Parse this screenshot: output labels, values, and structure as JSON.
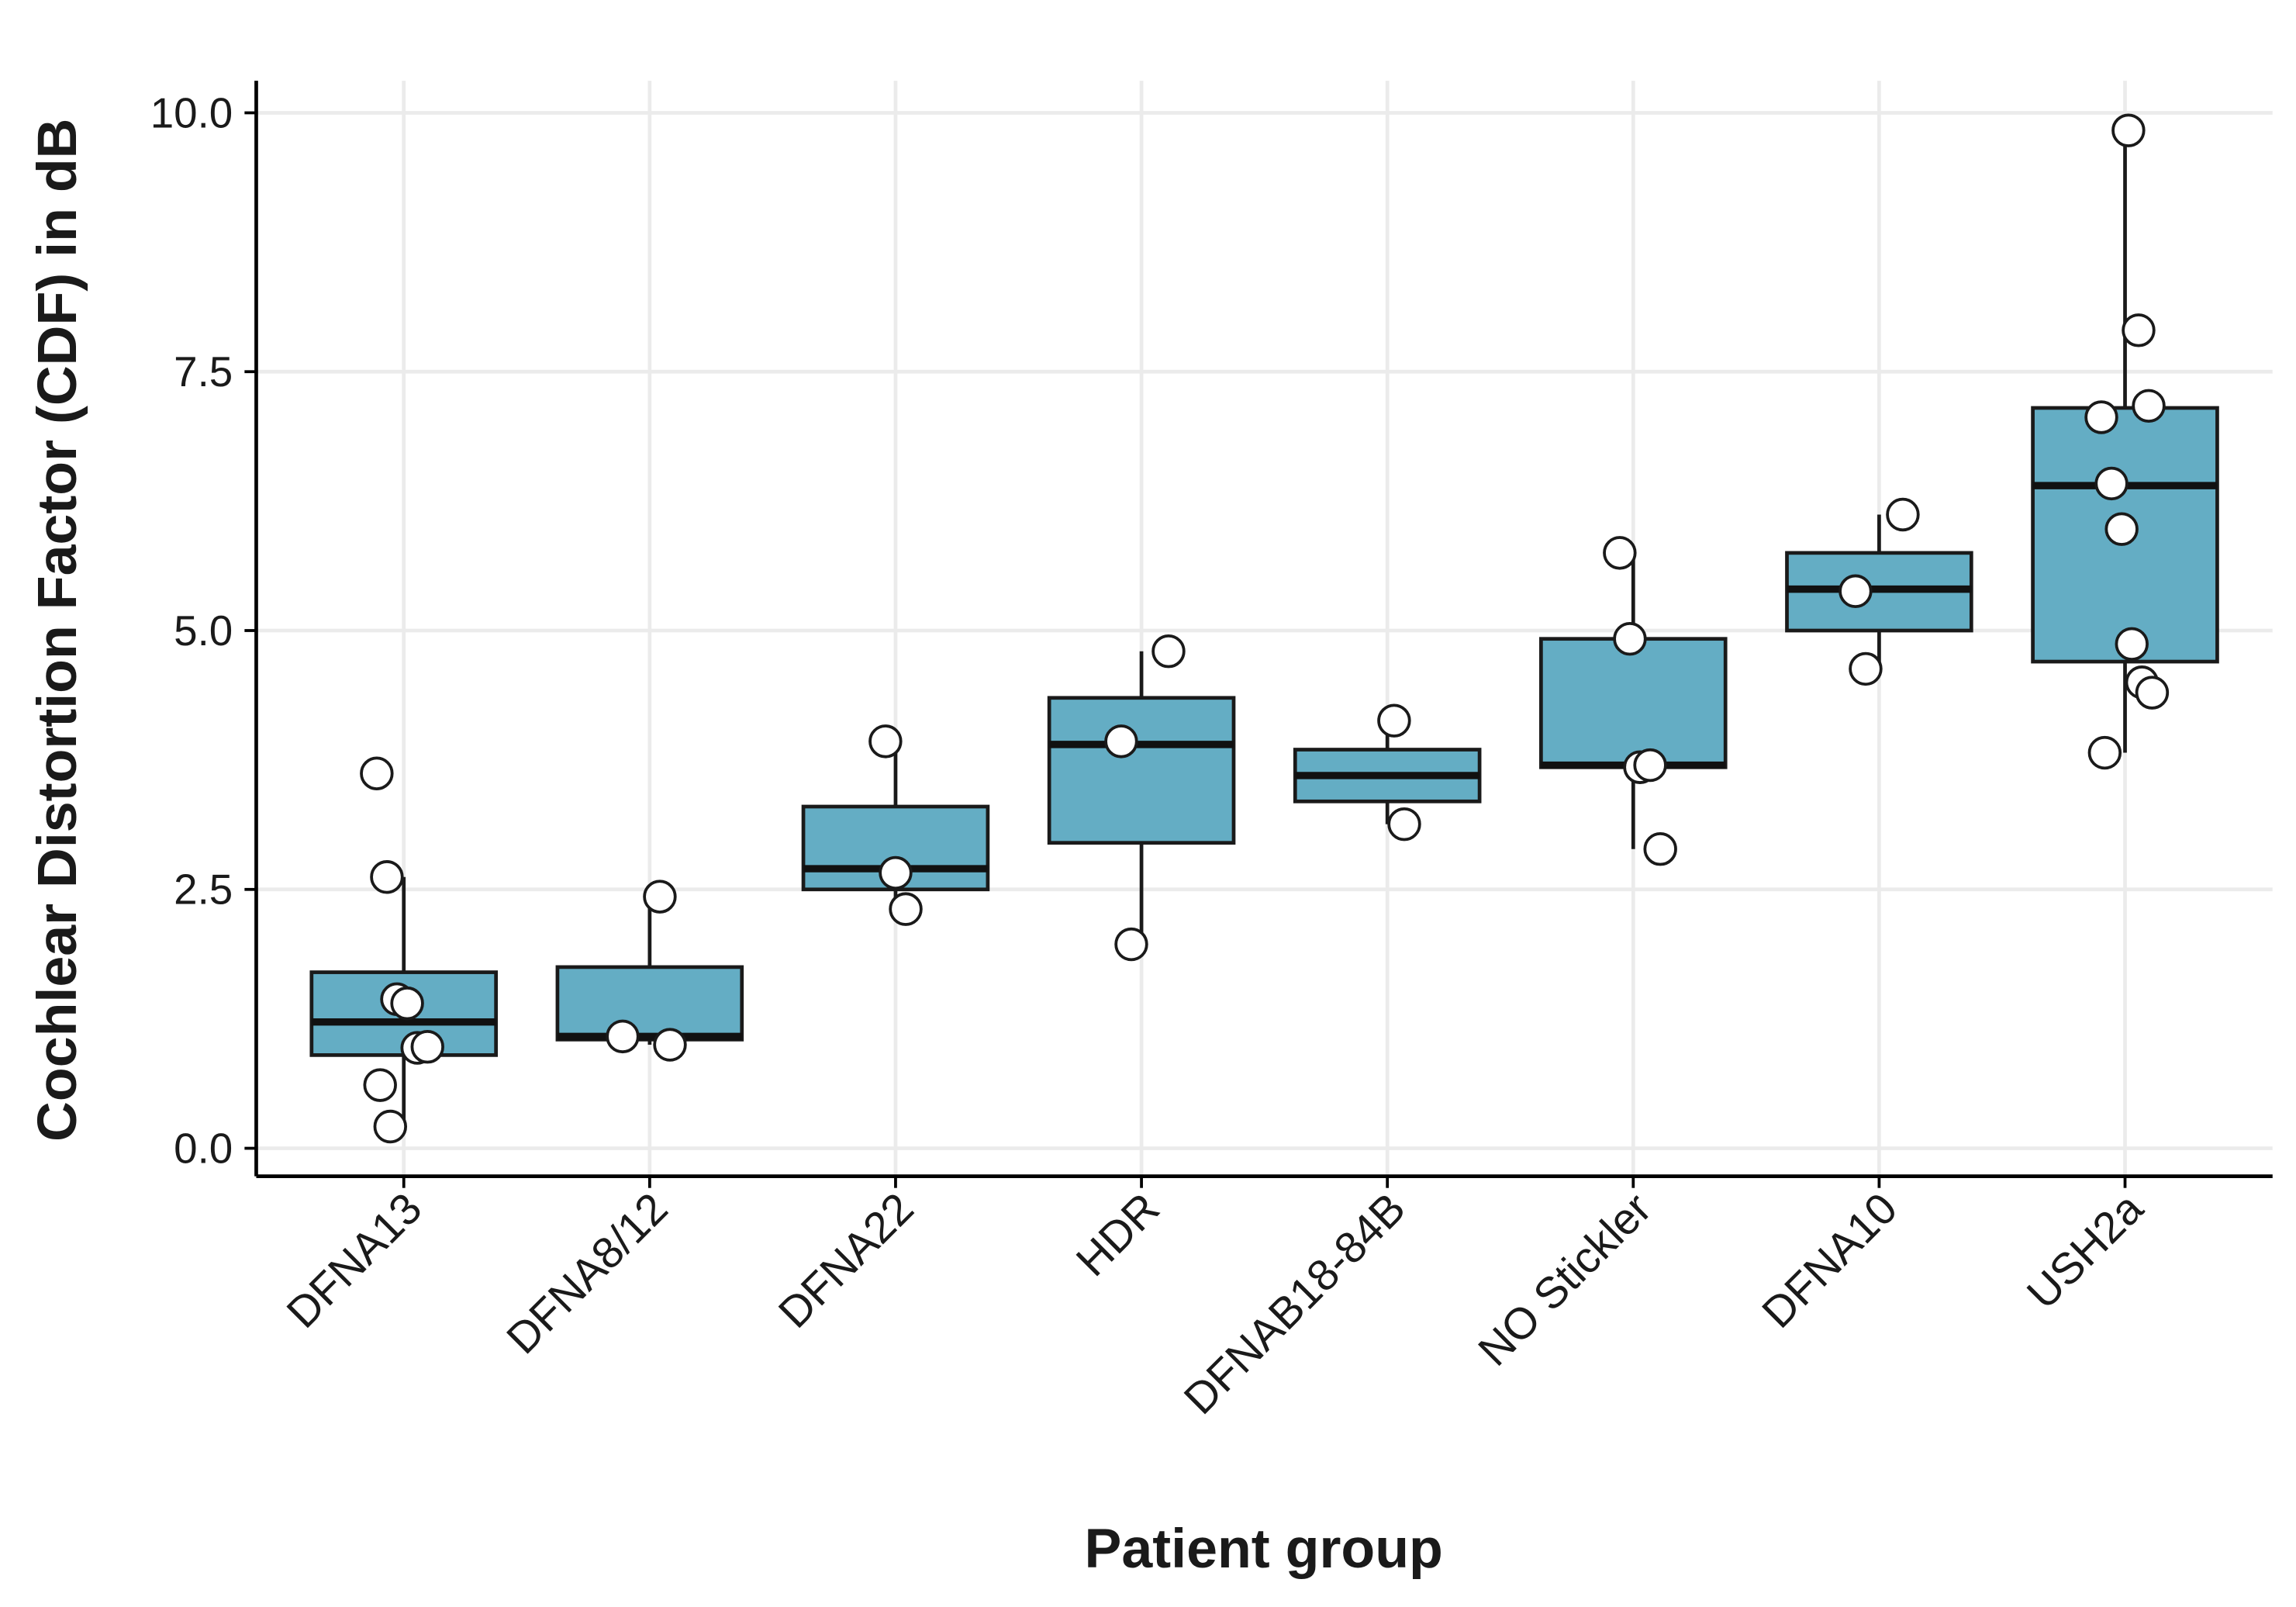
{
  "chart_data": {
    "type": "boxplot",
    "y_label": "Cochlear Distortion Factor (CDF) in dB",
    "x_label": "Patient group",
    "categories": [
      "DFNA13",
      "DFNA8/12",
      "DFNA22",
      "HDR",
      "DFNAB18-84B",
      "NO Stickler",
      "DFNA10",
      "USH2a"
    ],
    "color": "#64adc4",
    "ylim": [
      -0.27,
      10.31
    ],
    "yticks": [
      {
        "value": 0,
        "label": "0.0"
      },
      {
        "value": 2.5,
        "label": "2.5"
      },
      {
        "value": 5,
        "label": "5.0"
      },
      {
        "value": 7.5,
        "label": "7.5"
      },
      {
        "value": 10,
        "label": "10.0"
      }
    ],
    "grid": true,
    "boxes": [
      {
        "min": 0.21,
        "q1": 0.9,
        "median": 1.22,
        "q3": 1.7,
        "max": 2.62,
        "points": [
          3.62,
          2.62,
          1.44,
          1.4,
          0.97,
          0.98,
          0.61,
          0.21
        ]
      },
      {
        "min": 1.0,
        "q1": 1.05,
        "median": 1.08,
        "q3": 1.75,
        "max": 2.43,
        "points": [
          2.43,
          1.0,
          1.08
        ]
      },
      {
        "min": 2.31,
        "q1": 2.5,
        "median": 2.7,
        "q3": 3.3,
        "max": 3.93,
        "points": [
          3.93,
          2.66,
          2.31
        ]
      },
      {
        "min": 1.97,
        "q1": 2.95,
        "median": 3.9,
        "q3": 4.35,
        "max": 4.8,
        "points": [
          4.8,
          3.93,
          1.97
        ]
      },
      {
        "min": 3.13,
        "q1": 3.35,
        "median": 3.6,
        "q3": 3.85,
        "max": 4.13,
        "points": [
          4.13,
          3.13
        ]
      },
      {
        "min": 2.89,
        "q1": 3.68,
        "median": 3.7,
        "q3": 4.92,
        "max": 5.75,
        "points": [
          5.75,
          4.92,
          3.68,
          3.7,
          2.89
        ]
      },
      {
        "min": 4.63,
        "q1": 5.0,
        "median": 5.4,
        "q3": 5.75,
        "max": 6.12,
        "points": [
          6.12,
          5.38,
          4.63
        ]
      },
      {
        "min": 3.82,
        "q1": 4.7,
        "median": 6.4,
        "q3": 7.15,
        "max": 9.83,
        "points": [
          9.83,
          7.9,
          7.17,
          7.06,
          6.42,
          5.98,
          4.87,
          4.5,
          4.4,
          3.82
        ]
      }
    ]
  }
}
